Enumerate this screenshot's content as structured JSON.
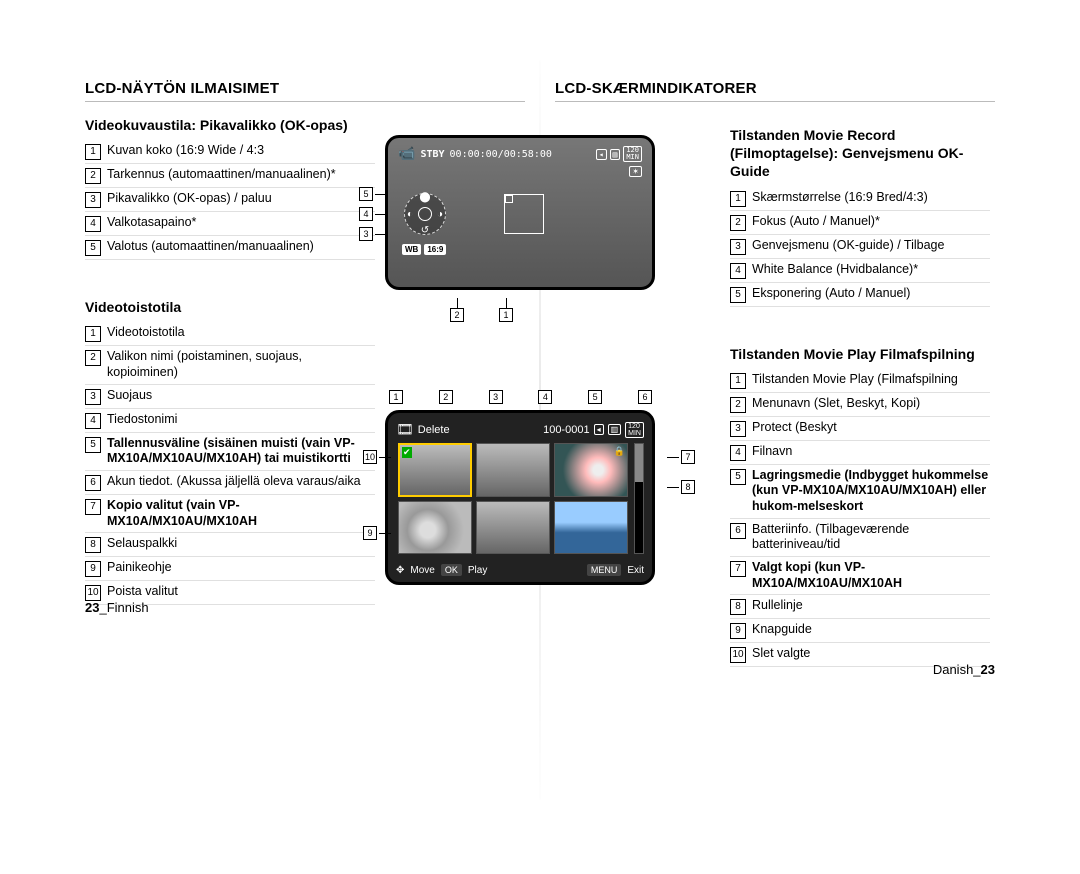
{
  "left": {
    "heading": "LCD-NÄYTÖN ILMAISIMET",
    "sec1_title": "Videokuvaustila: Pikavalikko (OK-opas)",
    "sec1_items": [
      "Kuvan koko (16:9 Wide / 4:3",
      "Tarkennus (automaattinen/manuaalinen)*",
      "Pikavalikko (OK-opas) / paluu",
      "Valkotasapaino*",
      "Valotus (automaattinen/manuaalinen)"
    ],
    "sec2_title": "Videotoistotila",
    "sec2_items": [
      {
        "t": "Videotoistotila"
      },
      {
        "t": "Valikon nimi (poistaminen, suojaus, kopioiminen)"
      },
      {
        "t": "Suojaus"
      },
      {
        "t": "Tiedostonimi"
      },
      {
        "t": "Tallennusväline (sisäinen muisti (vain VP-MX10A/MX10AU/MX10AH) tai muistikortti",
        "b": true
      },
      {
        "t": "Akun tiedot. (Akussa jäljellä oleva varaus/aika"
      },
      {
        "t": "Kopio valitut (vain VP-MX10A/MX10AU/MX10AH",
        "b": true
      },
      {
        "t": "Selauspalkki"
      },
      {
        "t": "Painikeohje"
      },
      {
        "t": "Poista valitut"
      }
    ],
    "footer_num": "23",
    "footer_lang": "Finnish"
  },
  "right": {
    "heading": "LCD-SKÆRMINDIKATORER",
    "sec1_title": "Tilstanden Movie Record (Filmoptagelse): Genvejsmenu OK-Guide",
    "sec1_items": [
      "Skærmstørrelse (16:9 Bred/4:3)",
      "Fokus (Auto / Manuel)*",
      "Genvejsmenu (OK-guide) / Tilbage",
      "White Balance (Hvidbalance)*",
      "Eksponering (Auto / Manuel)"
    ],
    "sec2_title": "Tilstanden Movie Play Filmafspilning",
    "sec2_items": [
      {
        "t": "Tilstanden Movie Play (Filmafspilning"
      },
      {
        "t": "Menunavn (Slet, Beskyt, Kopi)"
      },
      {
        "t": "Protect (Beskyt"
      },
      {
        "t": "Filnavn"
      },
      {
        "t": "Lagringsmedie (Indbygget hukommelse (kun VP-MX10A/MX10AU/MX10AH) eller hukom-melseskort",
        "b": true
      },
      {
        "t": "Batteriinfo. (Tilbageværende batteriniveau/tid"
      },
      {
        "t": "Valgt kopi (kun VP-MX10A/MX10AU/MX10AH",
        "b": true
      },
      {
        "t": "Rullelinje"
      },
      {
        "t": "Knapguide"
      },
      {
        "t": "Slet valgte"
      }
    ],
    "footer_lang": "Danish",
    "footer_num": "23"
  },
  "screen1": {
    "stby": "STBY",
    "time": "00:00:00/00:58:00",
    "tag_wb": "WB",
    "tag_169": "16:9"
  },
  "screen2": {
    "delete": "Delete",
    "filecode": "100-0001",
    "min": "120",
    "min_lbl": "MIN",
    "move": "Move",
    "ok": "OK",
    "play": "Play",
    "menu": "MENU",
    "exit": "Exit"
  }
}
